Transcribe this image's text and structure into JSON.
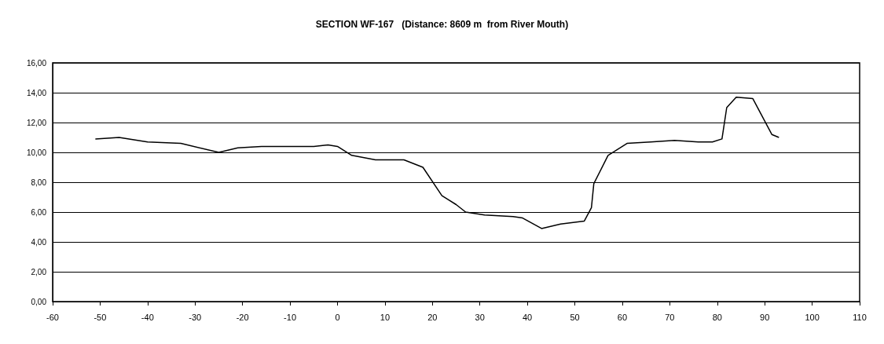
{
  "chart_data": {
    "type": "line",
    "title": "SECTION WF-167   (Distance: 8609 m  from River Mouth)",
    "x": [
      -51,
      -46,
      -40,
      -33,
      -25,
      -21,
      -16,
      -5,
      -2,
      0,
      3,
      8,
      14,
      18,
      22,
      25,
      27,
      31,
      37,
      39,
      43,
      47,
      52,
      53.5,
      54,
      57,
      61,
      66,
      71,
      76,
      79,
      81,
      82,
      84,
      87.5,
      91.5,
      93
    ],
    "series": [
      {
        "color": "#000000",
        "values": [
          10.9,
          11.0,
          10.7,
          10.6,
          10.0,
          10.3,
          10.4,
          10.4,
          10.5,
          10.4,
          9.8,
          9.5,
          9.5,
          9.0,
          7.1,
          6.5,
          6.0,
          5.8,
          5.7,
          5.6,
          4.9,
          5.2,
          5.4,
          6.3,
          7.9,
          9.8,
          10.6,
          10.7,
          10.8,
          10.7,
          10.7,
          10.9,
          13.0,
          13.7,
          13.6,
          11.2,
          11.0
        ]
      }
    ],
    "xlim": [
      -60,
      110
    ],
    "xticks": [
      -60,
      -50,
      -40,
      -30,
      -20,
      -10,
      0,
      10,
      20,
      30,
      40,
      50,
      60,
      70,
      80,
      90,
      100,
      110
    ],
    "ylim": [
      0,
      16
    ],
    "yticks": [
      {
        "value": 0,
        "label": "0,00"
      },
      {
        "value": 2,
        "label": "2,00"
      },
      {
        "value": 4,
        "label": "4,00"
      },
      {
        "value": 6,
        "label": "6,00"
      },
      {
        "value": 8,
        "label": "8,00"
      },
      {
        "value": 10,
        "label": "10,00"
      },
      {
        "value": 12,
        "label": "12,00"
      },
      {
        "value": 14,
        "label": "14,00"
      },
      {
        "value": 16,
        "label": "16,00"
      }
    ],
    "grid": "y",
    "marker": "none",
    "line_style": "solid"
  }
}
